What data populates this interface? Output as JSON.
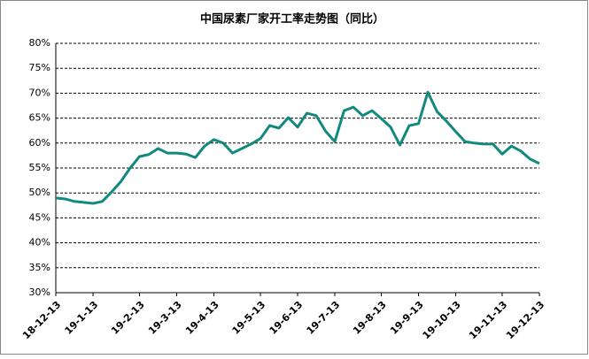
{
  "chart_data": {
    "type": "line",
    "title": "中国尿素厂家开工率走势图（同比）",
    "categories": [
      "18-12-13",
      null,
      null,
      null,
      "19-1-13",
      null,
      null,
      null,
      null,
      "19-2-13",
      null,
      null,
      null,
      "19-3-13",
      null,
      null,
      null,
      "19-4-13",
      null,
      null,
      null,
      null,
      "19-5-13",
      null,
      null,
      null,
      "19-6-13",
      null,
      null,
      null,
      "19-7-13",
      null,
      null,
      null,
      null,
      "19-8-13",
      null,
      null,
      null,
      "19-9-13",
      null,
      null,
      null,
      "19-10-13",
      null,
      null,
      null,
      null,
      "19-11-13",
      null,
      null,
      null,
      "19-12-13"
    ],
    "series": [
      {
        "color": "#12897e",
        "values": [
          49.0,
          48.8,
          48.3,
          48.1,
          47.9,
          48.3,
          50.2,
          52.3,
          55.0,
          57.3,
          57.7,
          58.9,
          58.0,
          58.0,
          57.8,
          57.1,
          59.4,
          60.7,
          60.0,
          58.0,
          58.9,
          59.8,
          60.9,
          63.5,
          63.0,
          65.1,
          63.2,
          66.0,
          65.5,
          62.4,
          60.3,
          66.5,
          67.2,
          65.5,
          66.5,
          64.9,
          63.2,
          59.6,
          63.5,
          63.9,
          70.2,
          66.3,
          64.4,
          62.3,
          60.3,
          60.0,
          59.8,
          59.8,
          57.8,
          59.4,
          58.4,
          56.8,
          55.9
        ]
      }
    ],
    "ylim": [
      30,
      80
    ],
    "yticks": [
      {
        "value": 30,
        "label": "30%"
      },
      {
        "value": 35,
        "label": "35%"
      },
      {
        "value": 40,
        "label": "40%"
      },
      {
        "value": 45,
        "label": "45%"
      },
      {
        "value": 50,
        "label": "50%"
      },
      {
        "value": 55,
        "label": "55%"
      },
      {
        "value": 60,
        "label": "60%"
      },
      {
        "value": 65,
        "label": "65%"
      },
      {
        "value": 70,
        "label": "70%"
      },
      {
        "value": 75,
        "label": "75%"
      },
      {
        "value": 80,
        "label": "80%"
      }
    ],
    "grid": true
  }
}
